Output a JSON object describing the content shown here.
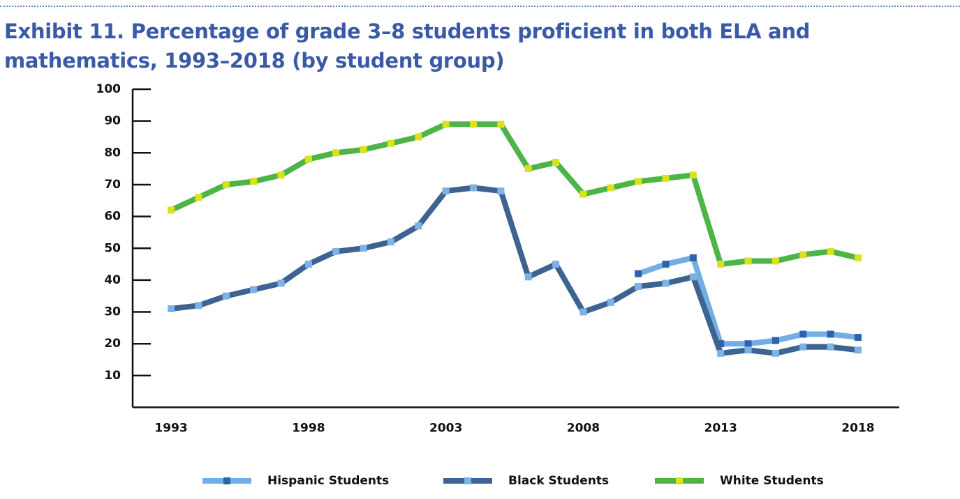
{
  "chart_data": {
    "type": "line",
    "title": "Exhibit 11. Percentage of grade 3–8 students proficient in both ELA and mathematics, 1993–2018 (by student group)",
    "x": [
      1993,
      1994,
      1995,
      1996,
      1997,
      1998,
      1999,
      2000,
      2001,
      2002,
      2003,
      2004,
      2005,
      2006,
      2007,
      2008,
      2009,
      2010,
      2011,
      2012,
      2013,
      2014,
      2015,
      2016,
      2017,
      2018
    ],
    "xlim": [
      1991.6,
      2019.5
    ],
    "xticks": [
      1993,
      1998,
      2003,
      2008,
      2013,
      2018
    ],
    "ylim": [
      0,
      100
    ],
    "yticks": [
      10,
      20,
      30,
      40,
      50,
      60,
      70,
      80,
      90,
      100
    ],
    "legend": "bottom",
    "series": [
      {
        "name": "Hispanic Students",
        "color": "#72aee3",
        "marker_color": "#2d62ad",
        "values": [
          null,
          null,
          null,
          null,
          null,
          null,
          null,
          null,
          null,
          null,
          null,
          null,
          null,
          null,
          null,
          null,
          null,
          42,
          45,
          47,
          20,
          20,
          21,
          23,
          23,
          22
        ]
      },
      {
        "name": "Black Students",
        "color": "#3d6391",
        "marker_color": "#7db2e6",
        "values": [
          31,
          32,
          35,
          37,
          39,
          45,
          49,
          50,
          52,
          57,
          68,
          69,
          68,
          41,
          45,
          30,
          33,
          38,
          39,
          41,
          17,
          18,
          17,
          19,
          19,
          18
        ]
      },
      {
        "name": "White Students",
        "color": "#4db548",
        "marker_color": "#d9e21f",
        "values": [
          62,
          66,
          70,
          71,
          73,
          78,
          80,
          81,
          83,
          85,
          89,
          89,
          89,
          75,
          77,
          67,
          69,
          71,
          72,
          73,
          45,
          46,
          46,
          48,
          49,
          47
        ]
      }
    ]
  }
}
